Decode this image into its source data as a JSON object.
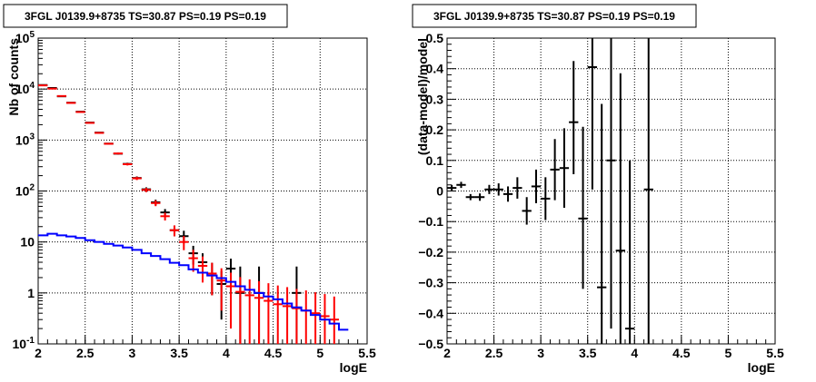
{
  "chart_data": [
    {
      "type": "scatter",
      "title": "3FGL J0139.9+8735 TS=30.87 PS=0.19 PS=0.19",
      "xlabel": "logE",
      "ylabel": "Nb of counts",
      "xlim": [
        2,
        5.5
      ],
      "ylim": [
        0.1,
        100000
      ],
      "yscale": "log",
      "grid": true,
      "x_ticks": [
        "2",
        "2.5",
        "3",
        "3.5",
        "4",
        "4.5",
        "5",
        "5.5"
      ],
      "y_ticks": [
        "10^-1",
        "1",
        "10",
        "10^2",
        "10^3",
        "10^4",
        "10^5"
      ],
      "bin_width": 0.1,
      "series": [
        {
          "color": "#000000",
          "x": [
            2.05,
            2.15,
            2.25,
            2.35,
            2.45,
            2.55,
            2.65,
            2.75,
            2.85,
            2.95,
            3.05,
            3.15,
            3.25,
            3.35,
            3.45,
            3.55,
            3.65,
            3.75,
            3.85,
            3.95,
            4.05,
            4.15,
            4.35,
            4.75
          ],
          "y": [
            12000,
            10500,
            7200,
            5400,
            3600,
            2200,
            1400,
            850,
            540,
            340,
            180,
            108,
            60,
            38,
            17,
            13,
            6,
            4,
            2.4,
            1.5,
            3,
            1,
            1,
            1
          ],
          "err_lo": [
            110,
            100,
            85,
            73,
            60,
            47,
            37,
            29,
            23,
            18,
            13,
            10,
            7.7,
            6.2,
            4.1,
            3.6,
            2.4,
            2,
            1.5,
            1.2,
            1.7,
            0.9,
            0.9,
            0.9
          ],
          "err_hi": [
            110,
            100,
            85,
            73,
            60,
            47,
            37,
            29,
            23,
            18,
            13,
            10,
            7.7,
            6.2,
            4.1,
            3.6,
            2.4,
            2,
            1.5,
            1.2,
            1.7,
            2.3,
            2.3,
            2.3
          ]
        },
        {
          "color": "#ff0000",
          "x": [
            2.05,
            2.15,
            2.25,
            2.35,
            2.45,
            2.55,
            2.65,
            2.75,
            2.85,
            2.95,
            3.05,
            3.15,
            3.25,
            3.35,
            3.45,
            3.55,
            3.65,
            3.75,
            3.85,
            3.95,
            4.05,
            4.15,
            4.25,
            4.35,
            4.45,
            4.55,
            4.65,
            4.75,
            4.85,
            4.95,
            5.05,
            5.15
          ],
          "y": [
            11800,
            10200,
            7300,
            5350,
            3550,
            2170,
            1380,
            845,
            545,
            335,
            177,
            105,
            58,
            32,
            17,
            10,
            4.8,
            3.4,
            2.4,
            1.75,
            1.35,
            1.05,
            0.9,
            0.8,
            0.7,
            0.6,
            0.55,
            0.5,
            0.45,
            0.4,
            0.35,
            0.3
          ],
          "err_lo": [
            110,
            100,
            85,
            73,
            60,
            47,
            37,
            29,
            23,
            18,
            13,
            10,
            7.6,
            5.6,
            4.1,
            3.1,
            2.2,
            1.8,
            1.5,
            1.3,
            1.15,
            1.0,
            0.88,
            0.79,
            0.7,
            0.6,
            0.55,
            0.5,
            0.45,
            0.4,
            0.35,
            0.3
          ],
          "err_hi": [
            110,
            100,
            85,
            73,
            60,
            47,
            37,
            29,
            23,
            18,
            13,
            10,
            7.6,
            5.6,
            4.1,
            3.1,
            2.2,
            1.8,
            1.5,
            1.3,
            1.15,
            1.0,
            0.95,
            0.9,
            0.85,
            0.8,
            0.75,
            0.7,
            0.67,
            0.63,
            0.6,
            0.55
          ]
        },
        {
          "color": "#0000ff",
          "step": true,
          "x": [
            2.05,
            2.15,
            2.25,
            2.35,
            2.45,
            2.55,
            2.65,
            2.75,
            2.85,
            2.95,
            3.05,
            3.15,
            3.25,
            3.35,
            3.45,
            3.55,
            3.65,
            3.75,
            3.85,
            3.95,
            4.05,
            4.15,
            4.25,
            4.35,
            4.45,
            4.55,
            4.65,
            4.75,
            4.85,
            4.95,
            5.05,
            5.15,
            5.25
          ],
          "y": [
            13.5,
            14.5,
            13.5,
            12.8,
            12,
            10.8,
            10,
            9.2,
            8.5,
            7.8,
            7,
            6,
            5.3,
            4.6,
            3.9,
            3.5,
            2.9,
            2.5,
            2.2,
            1.95,
            1.65,
            1.35,
            1.15,
            1.0,
            0.85,
            0.75,
            0.62,
            0.52,
            0.45,
            0.37,
            0.3,
            0.25,
            0.19
          ]
        }
      ]
    },
    {
      "type": "scatter",
      "title": "3FGL J0139.9+8735 TS=30.87 PS=0.19 PS=0.19",
      "xlabel": "logE",
      "ylabel": "(data-model)/model",
      "xlim": [
        2,
        5.5
      ],
      "ylim": [
        -0.5,
        0.5
      ],
      "grid": true,
      "x_ticks": [
        "2",
        "2.5",
        "3",
        "3.5",
        "4",
        "4.5",
        "5",
        "5.5"
      ],
      "y_ticks": [
        "−0.5",
        "−0.4",
        "−0.3",
        "−0.2",
        "−0.1",
        "0",
        "0.1",
        "0.2",
        "0.3",
        "0.4",
        "0.5"
      ],
      "bin_width": 0.1,
      "series": [
        {
          "color": "#000000",
          "x": [
            2.05,
            2.15,
            2.25,
            2.35,
            2.45,
            2.55,
            2.65,
            2.75,
            2.85,
            2.95,
            3.05,
            3.15,
            3.25,
            3.35,
            3.45,
            3.55,
            3.65,
            3.75,
            3.85,
            3.95,
            4.15
          ],
          "y": [
            0.01,
            0.02,
            -0.02,
            -0.02,
            0.005,
            0.005,
            -0.01,
            0.01,
            -0.065,
            0.015,
            -0.025,
            0.07,
            0.075,
            0.225,
            -0.09,
            0.405,
            -0.315,
            0.1,
            -0.195,
            -0.45,
            0.005
          ],
          "err_lo": [
            0.01,
            0.01,
            0.01,
            0.012,
            0.015,
            0.02,
            0.025,
            0.035,
            0.045,
            0.055,
            0.07,
            0.1,
            0.13,
            0.17,
            0.23,
            0.4,
            0.45,
            0.55,
            0.55,
            0.55,
            0.55
          ],
          "err_hi": [
            0.01,
            0.01,
            0.01,
            0.012,
            0.015,
            0.02,
            0.025,
            0.035,
            0.045,
            0.055,
            0.07,
            0.1,
            0.13,
            0.2,
            0.3,
            0.4,
            0.6,
            0.55,
            0.58,
            0.55,
            0.55
          ]
        }
      ]
    }
  ]
}
